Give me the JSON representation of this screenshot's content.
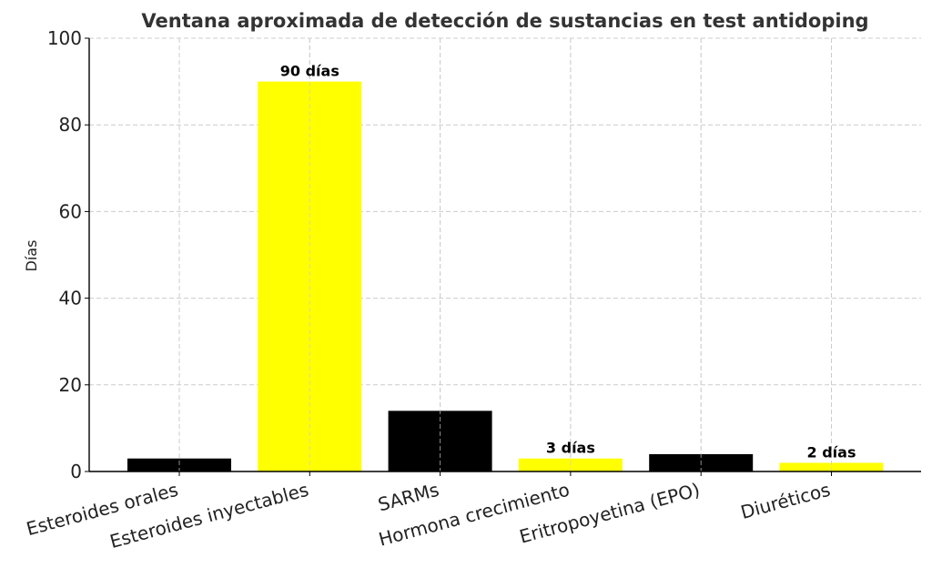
{
  "chart_data": {
    "type": "bar",
    "title": "Ventana aproximada de detección de sustancias en test antidoping",
    "xlabel": "",
    "ylabel": "Días",
    "ylim": [
      0,
      100
    ],
    "yticks": [
      0,
      20,
      40,
      60,
      80,
      100
    ],
    "grid": true,
    "categories": [
      "Esteroides orales",
      "Esteroides inyectables",
      "SARMs",
      "Hormona crecimiento",
      "Eritropoyetina (EPO)",
      "Diuréticos"
    ],
    "values": [
      3,
      90,
      14,
      3,
      4,
      2
    ],
    "colors": [
      "#000000",
      "#ffff00",
      "#000000",
      "#ffff00",
      "#000000",
      "#ffff00"
    ],
    "data_labels": [
      "",
      "90 días",
      "",
      "3 días",
      "",
      "2 días"
    ]
  }
}
